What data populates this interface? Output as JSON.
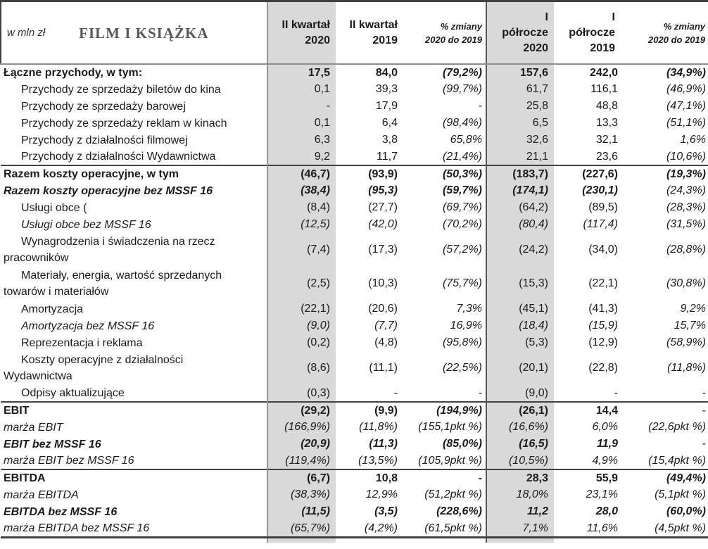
{
  "header": {
    "unit": "w mln zł",
    "title": "FILM I KSIĄŻKA"
  },
  "colors": {
    "column_shade": "#d9d9d9",
    "section_rule": "#404040",
    "grid_line": "#969696",
    "title_text": "#595959"
  },
  "table": {
    "columns": [
      {
        "lines": [
          "II kwartał",
          "2020"
        ],
        "shaded": true
      },
      {
        "lines": [
          "II kwartał",
          "2019"
        ]
      },
      {
        "lines": [
          "% zmiany",
          "2020 do 2019"
        ],
        "pct": true
      },
      {
        "lines": [
          "I",
          "półrocze",
          "2020"
        ],
        "shaded": true
      },
      {
        "lines": [
          "I",
          "półrocze",
          "2019"
        ]
      },
      {
        "lines": [
          "% zmiany",
          "2020 do 2019"
        ],
        "pct": true
      }
    ],
    "rows": [
      {
        "label": "Łączne przychody, w tym:",
        "style": "bold",
        "indent": 0,
        "cells": [
          "17,5",
          "84,0",
          "(79,2%)",
          "157,6",
          "242,0",
          "(34,9%)"
        ]
      },
      {
        "label": "Przychody ze sprzedaży biletów do kina",
        "style": "normal",
        "indent": 1,
        "cells": [
          "0,1",
          "39,3",
          "(99,7%)",
          "61,7",
          "116,1",
          "(46,9%)"
        ]
      },
      {
        "label": "Przychody ze sprzedaży barowej",
        "style": "normal",
        "indent": 1,
        "cells": [
          "-",
          "17,9",
          "-",
          "25,8",
          "48,8",
          "(47,1%)"
        ]
      },
      {
        "label": "Przychody ze sprzedaży reklam w kinach",
        "style": "normal",
        "indent": 1,
        "cells": [
          "0,1",
          "6,4",
          "(98,4%)",
          "6,5",
          "13,3",
          "(51,1%)"
        ]
      },
      {
        "label": "Przychody z działalności filmowej",
        "style": "normal",
        "indent": 1,
        "cells": [
          "6,3",
          "3,8",
          "65,8%",
          "32,6",
          "32,1",
          "1,6%"
        ]
      },
      {
        "label": "Przychody z działalności Wydawnictwa",
        "style": "normal",
        "indent": 1,
        "cells": [
          "9,2",
          "11,7",
          "(21,4%)",
          "21,1",
          "23,6",
          "(10,6%)"
        ]
      },
      {
        "label": "Razem koszty operacyjne, w tym",
        "style": "bold",
        "indent": 0,
        "divider_top": true,
        "cells": [
          "(46,7)",
          "(93,9)",
          "(50,3%)",
          "(183,7)",
          "(227,6)",
          "(19,3%)"
        ]
      },
      {
        "label": "Razem koszty operacyjne bez MSSF 16",
        "style": "bolditalic",
        "indent": 0,
        "overrides": {
          "5": "italic"
        },
        "cells": [
          "(38,4)",
          "(95,3)",
          "(59,7%)",
          "(174,1)",
          "(230,1)",
          "(24,3%)"
        ]
      },
      {
        "label": "Usługi obce (",
        "style": "normal",
        "indent": 1,
        "cells": [
          "(8,4)",
          "(27,7)",
          "(69,7%)",
          "(64,2)",
          "(89,5)",
          "(28,3%)"
        ]
      },
      {
        "label": "Usługi obce bez MSSF 16",
        "style": "italic",
        "indent": 1,
        "cells": [
          "(12,5)",
          "(42,0)",
          "(70,2%)",
          "(80,4)",
          "(117,4)",
          "(31,5%)"
        ]
      },
      {
        "label": "Wynagrodzenia i świadczenia na rzecz pracowników",
        "style": "normal",
        "indent": 1,
        "lines": 2,
        "cells": [
          "(7,4)",
          "(17,3)",
          "(57,2%)",
          "(24,2)",
          "(34,0)",
          "(28,8%)"
        ]
      },
      {
        "label": "Materiały, energia, wartość sprzedanych towarów i materiałów",
        "style": "normal",
        "indent": 1,
        "lines": 2,
        "cells": [
          "(2,5)",
          "(10,3)",
          "(75,7%)",
          "(15,3)",
          "(22,1)",
          "(30,8%)"
        ]
      },
      {
        "label": "Amortyzacja",
        "style": "normal",
        "indent": 1,
        "cells": [
          "(22,1)",
          "(20,6)",
          "7,3%",
          "(45,1)",
          "(41,3)",
          "9,2%"
        ]
      },
      {
        "label": "Amortyzacja bez MSSF 16",
        "style": "italic",
        "indent": 1,
        "cells": [
          "(9,0)",
          "(7,7)",
          "16,9%",
          "(18,4)",
          "(15,9)",
          "15,7%"
        ]
      },
      {
        "label": "Reprezentacja i reklama",
        "style": "normal",
        "indent": 1,
        "cells": [
          "(0,2)",
          "(4,8)",
          "(95,8%)",
          "(5,3)",
          "(12,9)",
          "(58,9%)"
        ]
      },
      {
        "label": "Koszty operacyjne z działalności Wydawnictwa",
        "style": "normal",
        "indent": 1,
        "lines": 2,
        "cells": [
          "(8,6)",
          "(11,1)",
          "(22,5%)",
          "(20,1)",
          "(22,8)",
          "(11,8%)"
        ]
      },
      {
        "label": "Odpisy aktualizujące",
        "style": "normal",
        "indent": 1,
        "cells": [
          "(0,3)",
          "-",
          "-",
          "(9,0)",
          "-",
          "-"
        ]
      },
      {
        "label": "EBIT",
        "style": "bold",
        "indent": 0,
        "divider_top": true,
        "overrides": {
          "5": "normal"
        },
        "cells": [
          "(29,2)",
          "(9,9)",
          "(194,9%)",
          "(26,1)",
          "14,4",
          "-"
        ]
      },
      {
        "label": "marża EBIT",
        "style": "italic",
        "indent": 0,
        "cells": [
          "(166,9%)",
          "(11,8%)",
          "(155,1pkt %)",
          "(16,6%)",
          "6,0%",
          "(22,6pkt %)"
        ]
      },
      {
        "label": "EBIT bez MSSF 16",
        "style": "bolditalic",
        "indent": 0,
        "overrides": {
          "5": "normal"
        },
        "cells": [
          "(20,9)",
          "(11,3)",
          "(85,0%)",
          "(16,5)",
          "11,9",
          "-"
        ]
      },
      {
        "label": "marża EBIT bez MSSF 16",
        "style": "italic",
        "indent": 0,
        "cells": [
          "(119,4%)",
          "(13,5%)",
          "(105,9pkt %)",
          "(10,5%)",
          "4,9%",
          "(15,4pkt %)"
        ]
      },
      {
        "label": "EBITDA",
        "style": "bold",
        "indent": 0,
        "divider_top": true,
        "cells": [
          "(6,7)",
          "10,8",
          "-",
          "28,3",
          "55,9",
          "(49,4%)"
        ]
      },
      {
        "label": "marża EBITDA",
        "style": "italic",
        "indent": 0,
        "cells": [
          "(38,3%)",
          "12,9%",
          "(51,2pkt %)",
          "18,0%",
          "23,1%",
          "(5,1pkt %)"
        ]
      },
      {
        "label": "EBITDA bez MSSF 16",
        "style": "bolditalic",
        "indent": 0,
        "cells": [
          "(11,5)",
          "(3,5)",
          "(228,6%)",
          "11,2",
          "28,0",
          "(60,0%)"
        ]
      },
      {
        "label": "marża EBITDA bez MSSF 16",
        "style": "italic",
        "indent": 0,
        "cells": [
          "(65,7%)",
          "(4,2%)",
          "(61,5pkt %)",
          "7,1%",
          "11,6%",
          "(4,5pkt %)"
        ]
      }
    ]
  }
}
